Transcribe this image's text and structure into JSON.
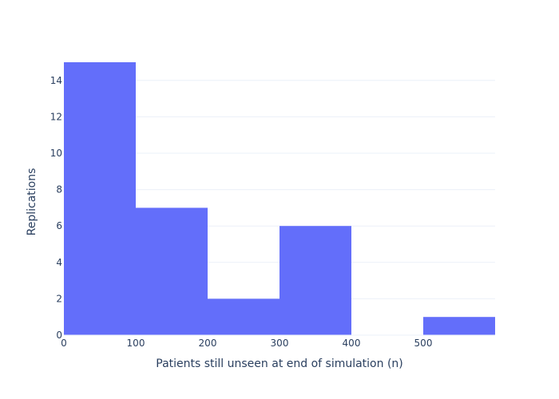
{
  "chart_data": {
    "type": "bar",
    "subtype": "histogram",
    "bins": [
      {
        "start": 0,
        "end": 100,
        "value": 15
      },
      {
        "start": 100,
        "end": 200,
        "value": 7
      },
      {
        "start": 200,
        "end": 300,
        "value": 2
      },
      {
        "start": 300,
        "end": 400,
        "value": 6
      },
      {
        "start": 400,
        "end": 500,
        "value": 0
      },
      {
        "start": 500,
        "end": 600,
        "value": 1
      }
    ],
    "xlabel": "Patients still unseen at end of simulation (n)",
    "ylabel": "Replications",
    "xlim": [
      0,
      600
    ],
    "ylim": [
      0,
      15
    ],
    "xticks": [
      0,
      100,
      200,
      300,
      400,
      500
    ],
    "yticks": [
      0,
      2,
      4,
      6,
      8,
      10,
      12,
      14
    ],
    "grid": true,
    "bar_color": "#636efa",
    "grid_color": "#ebf0f8",
    "text_color": "#2a3f5f"
  }
}
